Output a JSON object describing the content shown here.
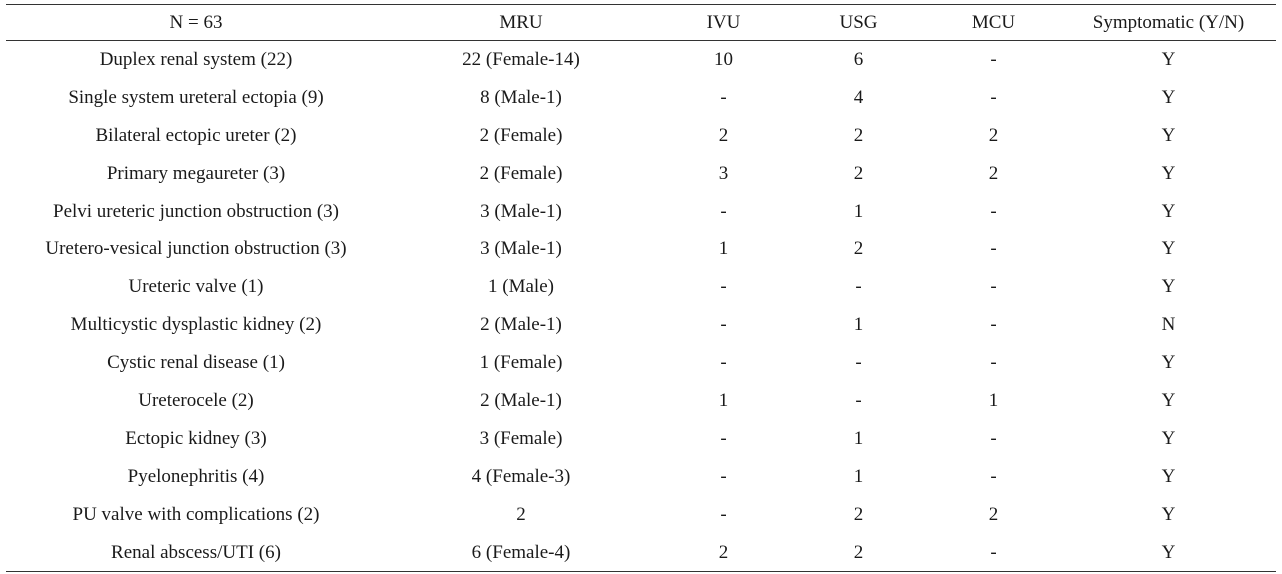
{
  "table": {
    "headers": [
      "N = 63",
      "MRU",
      "IVU",
      "USG",
      "MCU",
      "Symptomatic (Y/N)"
    ],
    "rows": [
      [
        "Duplex renal system (22)",
        "22 (Female-14)",
        "10",
        "6",
        "-",
        "Y"
      ],
      [
        "Single system ureteral ectopia (9)",
        "8 (Male-1)",
        "-",
        "4",
        "-",
        "Y"
      ],
      [
        "Bilateral ectopic ureter (2)",
        "2 (Female)",
        "2",
        "2",
        "2",
        "Y"
      ],
      [
        "Primary megaureter (3)",
        "2 (Female)",
        "3",
        "2",
        "2",
        "Y"
      ],
      [
        "Pelvi ureteric junction obstruction (3)",
        "3 (Male-1)",
        "-",
        "1",
        "-",
        "Y"
      ],
      [
        "Uretero-vesical junction obstruction (3)",
        "3 (Male-1)",
        "1",
        "2",
        "-",
        "Y"
      ],
      [
        "Ureteric valve (1)",
        "1 (Male)",
        "-",
        "-",
        "-",
        "Y"
      ],
      [
        "Multicystic dysplastic kidney (2)",
        "2 (Male-1)",
        "-",
        "1",
        "-",
        "N"
      ],
      [
        "Cystic renal disease (1)",
        "1 (Female)",
        "-",
        "-",
        "-",
        "Y"
      ],
      [
        "Ureterocele (2)",
        "2 (Male-1)",
        "1",
        "-",
        "1",
        "Y"
      ],
      [
        "Ectopic kidney (3)",
        "3 (Female)",
        "-",
        "1",
        "-",
        "Y"
      ],
      [
        "Pyelonephritis (4)",
        "4 (Female-3)",
        "-",
        "1",
        "-",
        "Y"
      ],
      [
        "PU valve with complications (2)",
        "2",
        "-",
        "2",
        "2",
        "Y"
      ],
      [
        "Renal abscess/UTI (6)",
        "6 (Female-4)",
        "2",
        "2",
        "-",
        "Y"
      ]
    ]
  }
}
